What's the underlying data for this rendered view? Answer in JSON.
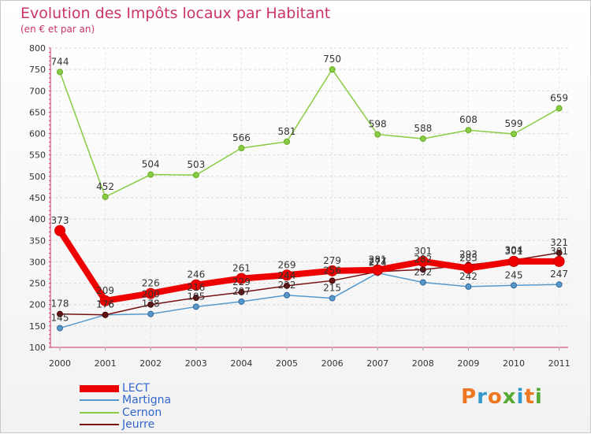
{
  "chart_data": {
    "type": "line",
    "title": "Evolution des Impôts locaux par Habitant",
    "subtitle": "(en € et par an)",
    "categories": [
      "2000",
      "2001",
      "2002",
      "2003",
      "2004",
      "2005",
      "2006",
      "2007",
      "2008",
      "2009",
      "2010",
      "2011"
    ],
    "ylim": [
      100,
      800
    ],
    "yticks": [
      100,
      150,
      200,
      250,
      300,
      350,
      400,
      450,
      500,
      550,
      600,
      650,
      700,
      750,
      800
    ],
    "series": [
      {
        "name": "LECT",
        "color": "#ee0000",
        "values": [
          373,
          209,
          226,
          246,
          261,
          269,
          279,
          281,
          301,
          285,
          301,
          301
        ],
        "labels": [
          "373",
          "209",
          "226",
          "246",
          "261",
          "269",
          "279",
          "281",
          "301",
          "285",
          "301",
          "301"
        ]
      },
      {
        "name": "Martigna",
        "color": "#5599cc",
        "values": [
          145,
          176,
          178,
          195,
          207,
          222,
          215,
          274,
          252,
          242,
          245,
          247
        ],
        "labels": [
          "145",
          "176",
          "178",
          "195",
          "207",
          "222",
          "215",
          "274",
          "252",
          "242",
          "245",
          "247"
        ]
      },
      {
        "name": "Cernon",
        "color": "#88cc44",
        "values": [
          744,
          452,
          504,
          503,
          566,
          581,
          750,
          598,
          588,
          608,
          599,
          659
        ],
        "labels": [
          "744",
          "452",
          "504",
          "503",
          "566",
          "581",
          "750",
          "598",
          "588",
          "608",
          "599",
          "659"
        ]
      },
      {
        "name": "Jeurre",
        "color": "#771111",
        "values": [
          178,
          176,
          200,
          216,
          229,
          244,
          256,
          277,
          282,
          293,
          304,
          321
        ],
        "labels": [
          "178",
          "176",
          "200",
          "216",
          "229",
          "244",
          "256",
          "277",
          "282",
          "293",
          "304",
          "321"
        ]
      }
    ]
  },
  "legend": {
    "items": [
      {
        "label": "LECT",
        "color": "#ee0000"
      },
      {
        "label": "Martigna",
        "color": "#5599cc"
      },
      {
        "label": "Cernon",
        "color": "#88cc44"
      },
      {
        "label": "Jeurre",
        "color": "#771111"
      }
    ]
  },
  "logo": {
    "text": "Proxiti",
    "colors": [
      "#ee7722",
      "#3399cc",
      "#ee7722",
      "#55aa33",
      "#3399cc",
      "#ee7722",
      "#55aa33"
    ]
  }
}
